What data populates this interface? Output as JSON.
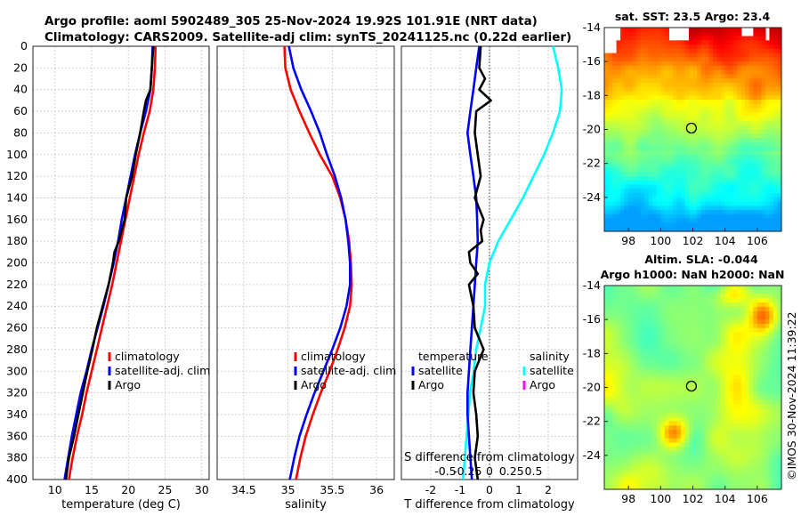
{
  "title_line1": "Argo profile: aoml 5902489_305 25-Nov-2024 19.92S 101.91E (NRT data)",
  "title_line2": "Climatology: CARS2009. Satellite-adj clim: synTS_20241125.nc (0.22d earlier)",
  "watermark": "©IMOS 30-Nov-2024 11:39:22",
  "colors": {
    "climatology": "#ff0000",
    "satellite": "#0000ff",
    "argo": "#000000",
    "sat_salinity": "#00ffff",
    "argo_salinity": "#ff00ff"
  },
  "chart_data": [
    {
      "type": "line",
      "name": "temperature-profile",
      "xlabel": "temperature (deg C)",
      "ylabel": "",
      "xlim": [
        7,
        31
      ],
      "ylim": [
        400,
        0
      ],
      "xticks": [
        10,
        15,
        20,
        25,
        30
      ],
      "yticks": [
        0,
        20,
        40,
        60,
        80,
        100,
        120,
        140,
        160,
        180,
        200,
        220,
        240,
        260,
        280,
        300,
        320,
        340,
        360,
        380,
        400
      ],
      "legend": [
        "climatology",
        "satellite-adj. clim",
        "Argo"
      ],
      "series": [
        {
          "name": "climatology",
          "depth": [
            0,
            20,
            40,
            60,
            80,
            100,
            120,
            140,
            160,
            180,
            200,
            220,
            240,
            260,
            280,
            300,
            320,
            340,
            360,
            380,
            400
          ],
          "values": [
            23.7,
            23.6,
            23.4,
            22.9,
            22.1,
            21.4,
            20.8,
            20.2,
            19.6,
            19.0,
            18.4,
            17.8,
            17.1,
            16.4,
            15.7,
            15.0,
            14.3,
            13.7,
            13.0,
            12.4,
            11.9
          ]
        },
        {
          "name": "satellite-adj. clim",
          "depth": [
            0,
            20,
            40,
            60,
            80,
            100,
            120,
            140,
            160,
            180,
            200,
            220,
            240,
            260,
            280,
            300,
            320,
            340,
            360,
            380,
            400
          ],
          "values": [
            23.3,
            23.2,
            23.0,
            22.4,
            21.6,
            20.9,
            20.3,
            19.7,
            19.1,
            18.6,
            18.0,
            17.3,
            16.6,
            15.8,
            15.0,
            14.3,
            13.5,
            12.9,
            12.3,
            11.8,
            11.3
          ]
        },
        {
          "name": "Argo",
          "depth": [
            0,
            20,
            40,
            50,
            60,
            80,
            100,
            120,
            140,
            160,
            180,
            190,
            200,
            210,
            220,
            240,
            260,
            280,
            300,
            320,
            340,
            360,
            380,
            400
          ],
          "values": [
            23.4,
            23.2,
            23.0,
            22.4,
            22.1,
            21.6,
            21.0,
            20.5,
            19.7,
            19.5,
            18.7,
            18.1,
            17.9,
            17.6,
            17.3,
            16.5,
            15.7,
            15.1,
            14.4,
            13.8,
            13.2,
            12.6,
            11.9,
            11.5
          ]
        }
      ]
    },
    {
      "type": "line",
      "name": "salinity-profile",
      "xlabel": "salinity",
      "ylabel": "",
      "xlim": [
        34.2,
        36.2
      ],
      "ylim": [
        400,
        0
      ],
      "xticks": [
        34.5,
        35,
        35.5,
        36
      ],
      "legend": [
        "climatology",
        "satellite-adj. clim",
        "Argo"
      ],
      "series": [
        {
          "name": "climatology",
          "depth": [
            0,
            20,
            40,
            60,
            80,
            100,
            120,
            140,
            160,
            180,
            200,
            220,
            240,
            260,
            280,
            300,
            320,
            340,
            360,
            380,
            400
          ],
          "values": [
            34.96,
            34.97,
            35.03,
            35.13,
            35.24,
            35.36,
            35.5,
            35.59,
            35.65,
            35.69,
            35.71,
            35.72,
            35.7,
            35.64,
            35.56,
            35.47,
            35.37,
            35.28,
            35.2,
            35.14,
            35.09
          ]
        },
        {
          "name": "satellite-adj. clim",
          "depth": [
            0,
            20,
            40,
            60,
            80,
            100,
            120,
            140,
            160,
            180,
            200,
            220,
            240,
            260,
            280,
            300,
            320,
            340,
            360,
            380,
            400
          ],
          "values": [
            35.01,
            35.06,
            35.15,
            35.26,
            35.36,
            35.44,
            35.53,
            35.6,
            35.65,
            35.68,
            35.7,
            35.7,
            35.66,
            35.59,
            35.5,
            35.4,
            35.3,
            35.21,
            35.13,
            35.07,
            35.02
          ]
        },
        {
          "name": "Argo",
          "depth": [
            0,
            400
          ],
          "values": [
            null,
            null
          ]
        }
      ]
    },
    {
      "type": "line",
      "name": "difference-profile",
      "xlabel": "T difference from climatology",
      "xlabel_top": "S difference from climatology",
      "xlim": [
        -3,
        3
      ],
      "ylim": [
        400,
        0
      ],
      "xticks": [
        -2,
        -1,
        0,
        1,
        2
      ],
      "xticks_top": [
        -0.5,
        -0.25,
        0,
        0.25,
        0.5
      ],
      "legend": {
        "temperature_header": "temperature",
        "salinity_header": "salinity",
        "temperature": [
          "satellite",
          "Argo"
        ],
        "salinity": [
          "satellite",
          "Argo"
        ]
      },
      "series": [
        {
          "name": "T satellite",
          "depth": [
            0,
            20,
            40,
            60,
            80,
            100,
            120,
            140,
            160,
            180,
            200,
            220,
            240,
            260,
            280,
            300,
            320,
            340,
            360,
            380,
            400
          ],
          "values": [
            -0.35,
            -0.45,
            -0.55,
            -0.65,
            -0.75,
            -0.65,
            -0.55,
            -0.45,
            -0.42,
            -0.4,
            -0.45,
            -0.5,
            -0.55,
            -0.6,
            -0.65,
            -0.7,
            -0.75,
            -0.75,
            -0.7,
            -0.65,
            -0.6
          ]
        },
        {
          "name": "T Argo",
          "depth": [
            0,
            20,
            30,
            40,
            50,
            60,
            80,
            100,
            120,
            140,
            160,
            170,
            180,
            190,
            200,
            210,
            220,
            240,
            260,
            280,
            300,
            320,
            340,
            360,
            380,
            400
          ],
          "values": [
            -0.3,
            -0.35,
            -0.15,
            -0.35,
            0.05,
            -0.45,
            -0.5,
            -0.4,
            -0.3,
            -0.5,
            -0.2,
            -0.3,
            -0.25,
            -0.7,
            -0.65,
            -0.4,
            -0.7,
            -0.55,
            -0.5,
            -0.2,
            -0.5,
            -0.55,
            -0.45,
            -0.4,
            -0.5,
            -0.4
          ]
        },
        {
          "name": "S satellite",
          "depth": [
            0,
            20,
            40,
            60,
            80,
            100,
            120,
            140,
            160,
            180,
            200,
            220,
            240,
            260,
            280,
            300,
            320,
            340,
            360,
            380,
            400
          ],
          "values": [
            0.72,
            0.78,
            0.82,
            0.8,
            0.72,
            0.62,
            0.5,
            0.38,
            0.24,
            0.1,
            0.0,
            -0.05,
            -0.05,
            -0.1,
            -0.15,
            -0.18,
            -0.22,
            -0.24,
            -0.26,
            -0.28,
            -0.3
          ]
        }
      ]
    },
    {
      "type": "heatmap",
      "name": "sst-map",
      "title": "sat. SST: 23.5 Argo: 23.4",
      "xlim": [
        96.5,
        107.5
      ],
      "ylim": [
        -26,
        -14
      ],
      "xticks": [
        98,
        100,
        102,
        104,
        106
      ],
      "yticks": [
        -14,
        -16,
        -18,
        -20,
        -22,
        -24
      ],
      "marker": {
        "lon": 101.91,
        "lat": -19.92
      }
    },
    {
      "type": "heatmap",
      "name": "sla-map",
      "title": "Altim. SLA: -0.044",
      "title2": "Argo h1000: NaN h2000: NaN",
      "xlim": [
        96.5,
        107.5
      ],
      "ylim": [
        -26,
        -14
      ],
      "xticks": [
        98,
        100,
        102,
        104,
        106
      ],
      "yticks": [
        -14,
        -16,
        -18,
        -20,
        -22,
        -24
      ],
      "marker": {
        "lon": 101.91,
        "lat": -19.92
      }
    }
  ]
}
